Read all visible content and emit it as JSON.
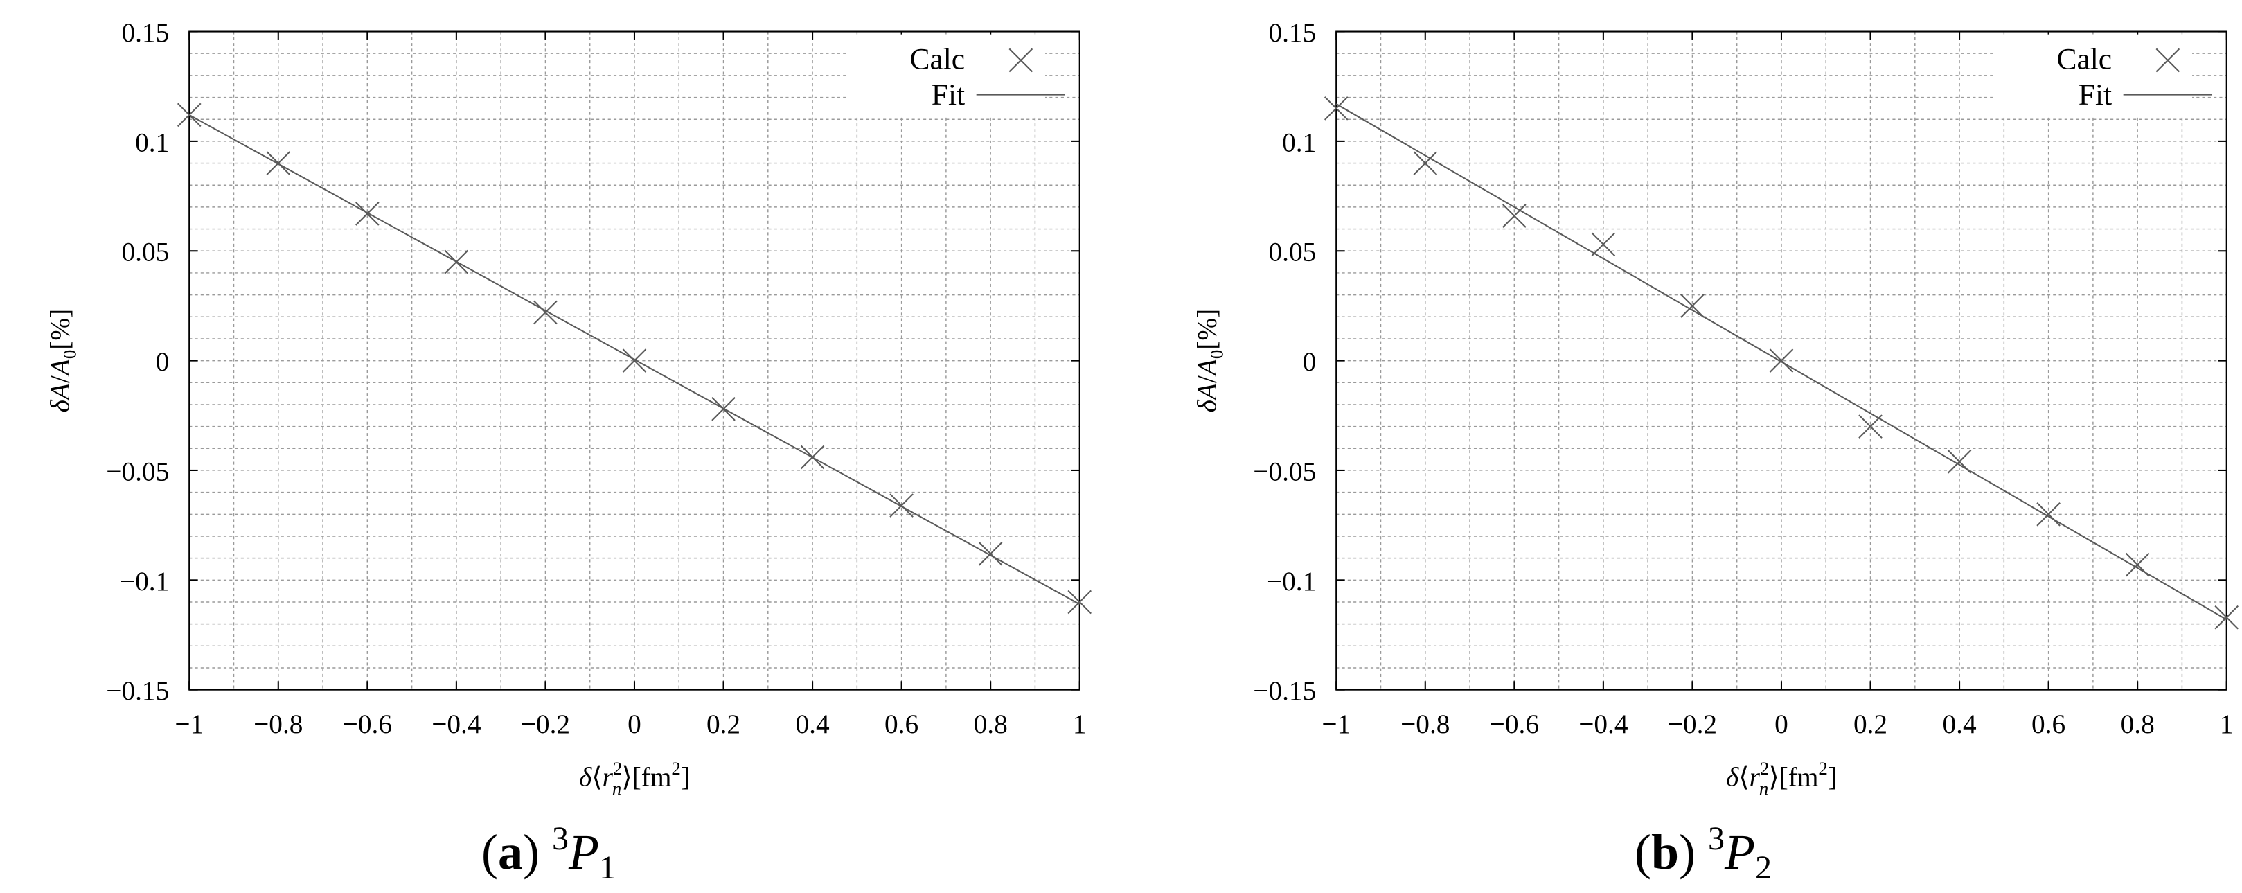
{
  "chart_data": [
    {
      "type": "scatter",
      "title": "",
      "xlabel": "δ⟨r_n^2⟩[fm^2]",
      "ylabel": "δA/A_0[%]",
      "xlim": [
        -1,
        1
      ],
      "ylim": [
        -0.15,
        0.15
      ],
      "x_ticks": [
        "−1",
        "−0.8",
        "−0.6",
        "−0.4",
        "−0.2",
        "0",
        "0.2",
        "0.4",
        "0.6",
        "0.8",
        "1"
      ],
      "y_ticks": [
        "0.15",
        "0.1",
        "0.05",
        "0",
        "−0.05",
        "−0.1",
        "−0.15"
      ],
      "grid": true,
      "legend_position": "top-right",
      "series": [
        {
          "name": "Calc",
          "style": "markers",
          "x": [
            -1,
            -0.8,
            -0.6,
            -0.4,
            -0.2,
            0,
            0.2,
            0.4,
            0.6,
            0.8,
            1
          ],
          "y": [
            0.112,
            0.09,
            0.067,
            0.045,
            0.022,
            0,
            -0.022,
            -0.044,
            -0.066,
            -0.088,
            -0.11
          ]
        },
        {
          "name": "Fit",
          "style": "line",
          "x": [
            -1,
            1
          ],
          "y": [
            0.112,
            -0.111
          ]
        }
      ],
      "caption": {
        "label": "a",
        "term": "P",
        "superscript": "3",
        "subscript": "1"
      }
    },
    {
      "type": "scatter",
      "title": "",
      "xlabel": "δ⟨r_n^2⟩[fm^2]",
      "ylabel": "δA/A_0[%]",
      "xlim": [
        -1,
        1
      ],
      "ylim": [
        -0.15,
        0.15
      ],
      "x_ticks": [
        "−1",
        "−0.8",
        "−0.6",
        "−0.4",
        "−0.2",
        "0",
        "0.2",
        "0.4",
        "0.6",
        "0.8",
        "1"
      ],
      "y_ticks": [
        "0.15",
        "0.1",
        "0.05",
        "0",
        "−0.05",
        "−0.1",
        "−0.15"
      ],
      "grid": true,
      "legend_position": "top-right",
      "series": [
        {
          "name": "Calc",
          "style": "markers",
          "x": [
            -1,
            -0.8,
            -0.6,
            -0.4,
            -0.2,
            0,
            0.2,
            0.4,
            0.6,
            0.8,
            1
          ],
          "y": [
            0.115,
            0.09,
            0.066,
            0.053,
            0.025,
            0,
            -0.03,
            -0.046,
            -0.07,
            -0.093,
            -0.117
          ]
        },
        {
          "name": "Fit",
          "style": "line",
          "x": [
            -1,
            1
          ],
          "y": [
            0.117,
            -0.118
          ]
        }
      ],
      "caption": {
        "label": "b",
        "term": "P",
        "superscript": "3",
        "subscript": "2"
      }
    }
  ]
}
